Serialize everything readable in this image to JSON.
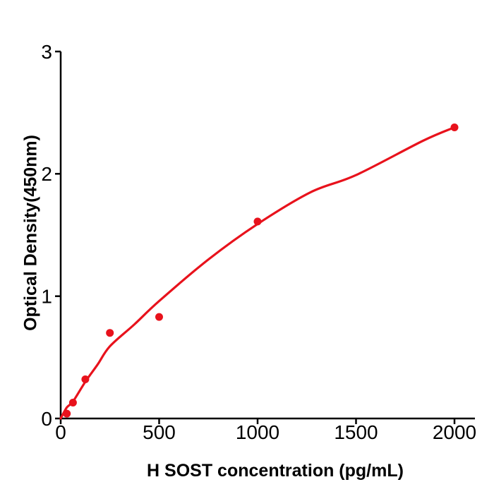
{
  "figure": {
    "background": "#ffffff",
    "axis_color": "#000000",
    "accent_color": "#e8121c"
  },
  "chart_data": {
    "type": "scatter",
    "title": "",
    "xlabel": "H  SOST concentration (pg/mL)",
    "ylabel": "Optical Density(450nm)",
    "x_ticks": [
      "0",
      "500",
      "1000",
      "1500",
      "2000"
    ],
    "x_tick_values": [
      0,
      500,
      1000,
      1500,
      2000
    ],
    "y_ticks": [
      "0",
      "1",
      "2",
      "3"
    ],
    "y_tick_values": [
      0,
      1,
      2,
      3
    ],
    "xlim": [
      0,
      2104
    ],
    "ylim": [
      0,
      3
    ],
    "grid": false,
    "legend": "none",
    "series": [
      {
        "name": "standard-points",
        "type": "scatter",
        "color": "#e8121c",
        "marker": "circle",
        "marker_radius": 5.5,
        "points": [
          [
            31.25,
            0.04
          ],
          [
            62.5,
            0.13
          ],
          [
            125,
            0.32
          ],
          [
            250,
            0.7
          ],
          [
            500,
            0.83
          ],
          [
            1000,
            1.61
          ],
          [
            2000,
            2.38
          ]
        ]
      },
      {
        "name": "fit-curve",
        "type": "line",
        "color": "#e8121c",
        "stroke_width": 3.2,
        "points": [
          [
            0,
            0.0
          ],
          [
            31,
            0.09
          ],
          [
            63,
            0.14
          ],
          [
            125,
            0.3
          ],
          [
            187,
            0.44
          ],
          [
            250,
            0.59
          ],
          [
            375,
            0.77
          ],
          [
            500,
            0.96
          ],
          [
            750,
            1.3
          ],
          [
            1000,
            1.59
          ],
          [
            1270,
            1.85
          ],
          [
            1500,
            1.99
          ],
          [
            1840,
            2.27
          ],
          [
            2000,
            2.38
          ]
        ]
      }
    ]
  }
}
